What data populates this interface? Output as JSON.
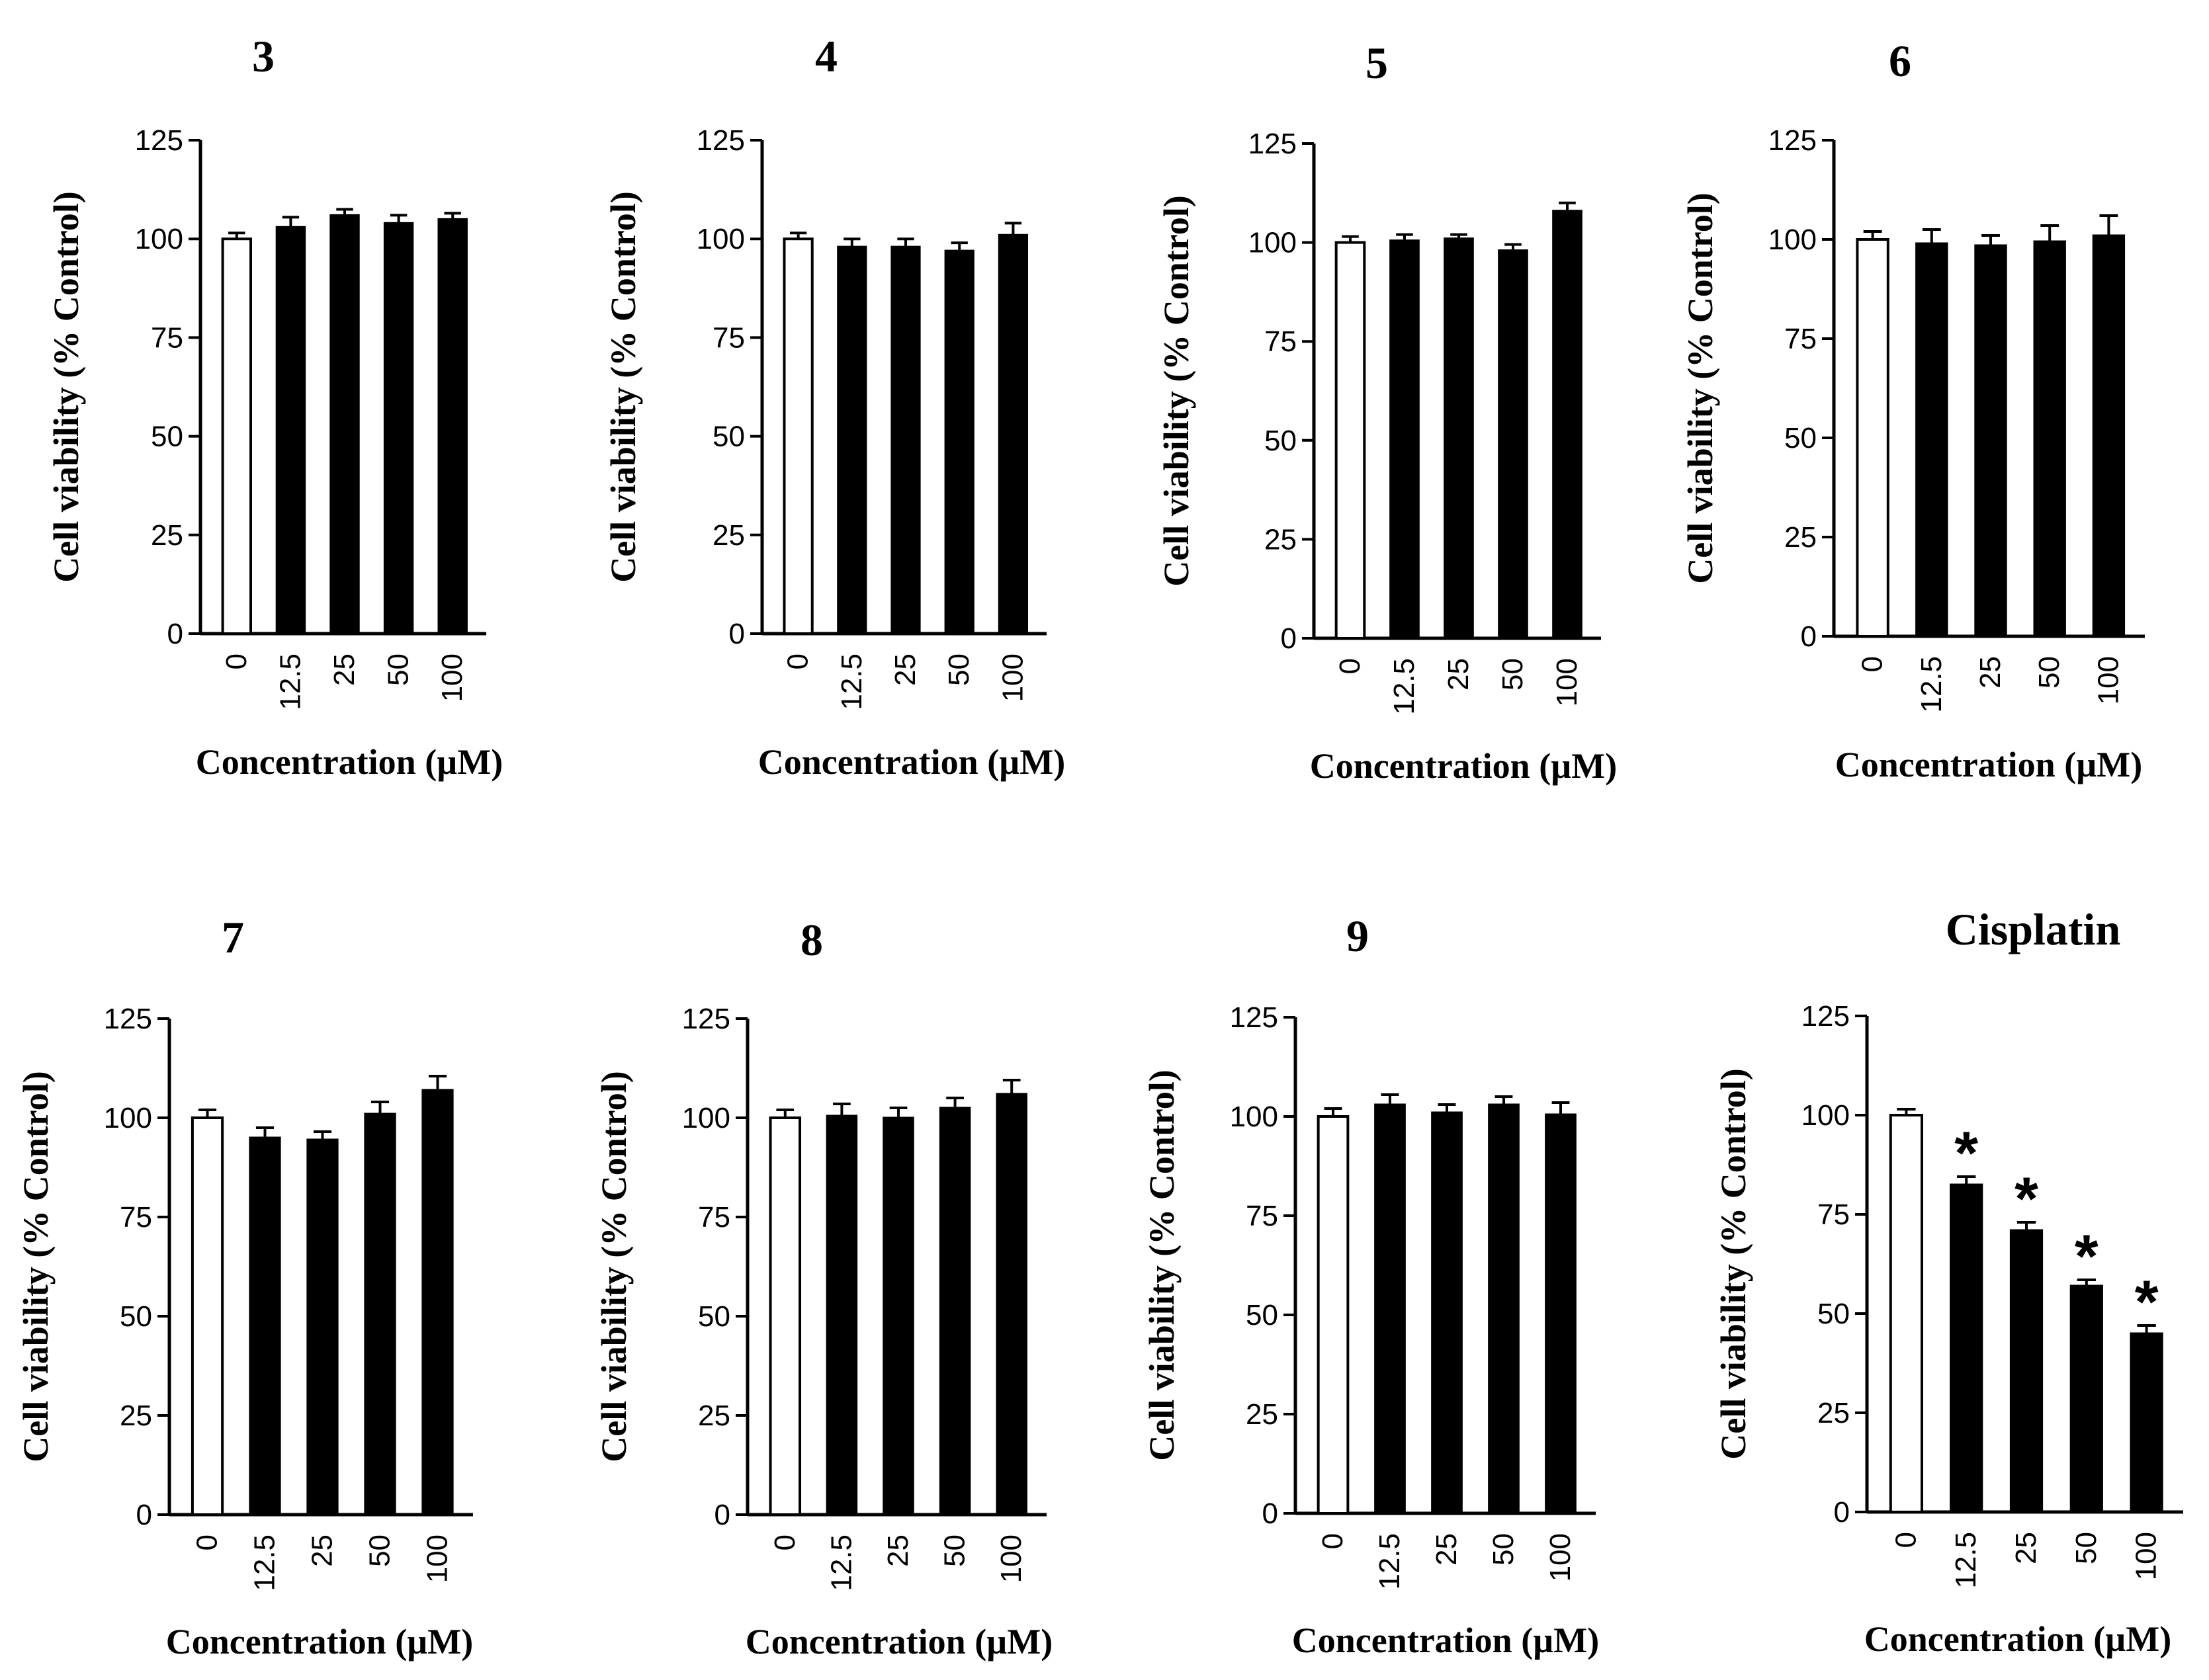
{
  "chart_data": [
    {
      "type": "bar",
      "title": "3",
      "ylabel": "Cell viability (% Control)",
      "xlabel": "Concentration (µM)",
      "categories": [
        "0",
        "12.5",
        "25",
        "50",
        "100"
      ],
      "values": [
        100,
        103,
        106,
        104,
        105
      ],
      "errors": [
        1.5,
        2.5,
        1.5,
        2,
        1.5
      ],
      "significant": [
        false,
        false,
        false,
        false,
        false
      ],
      "ylim": [
        0,
        125
      ],
      "yticks": [
        "0",
        "25",
        "50",
        "75",
        "100",
        "125"
      ]
    },
    {
      "type": "bar",
      "title": "4",
      "ylabel": "Cell viability (% Control)",
      "xlabel": "Concentration (µM)",
      "categories": [
        "0",
        "12.5",
        "25",
        "50",
        "100"
      ],
      "values": [
        100,
        98,
        98,
        97,
        101
      ],
      "errors": [
        1.5,
        2,
        2,
        2,
        3
      ],
      "significant": [
        false,
        false,
        false,
        false,
        false
      ],
      "ylim": [
        0,
        125
      ],
      "yticks": [
        "0",
        "25",
        "50",
        "75",
        "100",
        "125"
      ]
    },
    {
      "type": "bar",
      "title": "5",
      "ylabel": "Cell viability (% Control)",
      "xlabel": "Concentration (µM)",
      "categories": [
        "0",
        "12.5",
        "25",
        "50",
        "100"
      ],
      "values": [
        100,
        100.5,
        101,
        98,
        108
      ],
      "errors": [
        1.5,
        1.5,
        1,
        1.5,
        2
      ],
      "significant": [
        false,
        false,
        false,
        false,
        false
      ],
      "ylim": [
        0,
        125
      ],
      "yticks": [
        "0",
        "25",
        "50",
        "75",
        "100",
        "125"
      ]
    },
    {
      "type": "bar",
      "title": "6",
      "ylabel": "Cell viability (% Control)",
      "xlabel": "Concentration (µM)",
      "categories": [
        "0",
        "12.5",
        "25",
        "50",
        "100"
      ],
      "values": [
        100,
        99,
        98.5,
        99.5,
        101
      ],
      "errors": [
        2,
        3.5,
        2.5,
        4,
        5
      ],
      "significant": [
        false,
        false,
        false,
        false,
        false
      ],
      "ylim": [
        0,
        125
      ],
      "yticks": [
        "0",
        "25",
        "50",
        "75",
        "100",
        "125"
      ]
    },
    {
      "type": "bar",
      "title": "7",
      "ylabel": "Cell viability (% Control)",
      "xlabel": "Concentration (µM)",
      "categories": [
        "0",
        "12.5",
        "25",
        "50",
        "100"
      ],
      "values": [
        100,
        95,
        94.5,
        101,
        107
      ],
      "errors": [
        2,
        2.5,
        2,
        3,
        3.5
      ],
      "significant": [
        false,
        false,
        false,
        false,
        false
      ],
      "ylim": [
        0,
        125
      ],
      "yticks": [
        "0",
        "25",
        "50",
        "75",
        "100",
        "125"
      ]
    },
    {
      "type": "bar",
      "title": "8",
      "ylabel": "Cell viability (% Control)",
      "xlabel": "Concentration (µM)",
      "categories": [
        "0",
        "12.5",
        "25",
        "50",
        "100"
      ],
      "values": [
        100,
        100.5,
        100,
        102.5,
        106
      ],
      "errors": [
        2,
        3,
        2.5,
        2.5,
        3.5
      ],
      "significant": [
        false,
        false,
        false,
        false,
        false
      ],
      "ylim": [
        0,
        125
      ],
      "yticks": [
        "0",
        "25",
        "50",
        "75",
        "100",
        "125"
      ]
    },
    {
      "type": "bar",
      "title": "9",
      "ylabel": "Cell viability (% Control)",
      "xlabel": "Concentration (µM)",
      "categories": [
        "0",
        "12.5",
        "25",
        "50",
        "100"
      ],
      "values": [
        100,
        103,
        101,
        103,
        100.5
      ],
      "errors": [
        2,
        2.5,
        2,
        2,
        3
      ],
      "significant": [
        false,
        false,
        false,
        false,
        false
      ],
      "ylim": [
        0,
        125
      ],
      "yticks": [
        "0",
        "25",
        "50",
        "75",
        "100",
        "125"
      ]
    },
    {
      "type": "bar",
      "title": "Cisplatin",
      "ylabel": "Cell viability (% Control)",
      "xlabel": "Concentration (µM)",
      "categories": [
        "0",
        "12.5",
        "25",
        "50",
        "100"
      ],
      "values": [
        100,
        82.5,
        71,
        57,
        45
      ],
      "errors": [
        1.5,
        2,
        2,
        1.5,
        2
      ],
      "significant": [
        false,
        true,
        true,
        true,
        true
      ],
      "significance_marker": "*",
      "ylim": [
        0,
        125
      ],
      "yticks": [
        "0",
        "25",
        "50",
        "75",
        "100",
        "125"
      ]
    }
  ]
}
